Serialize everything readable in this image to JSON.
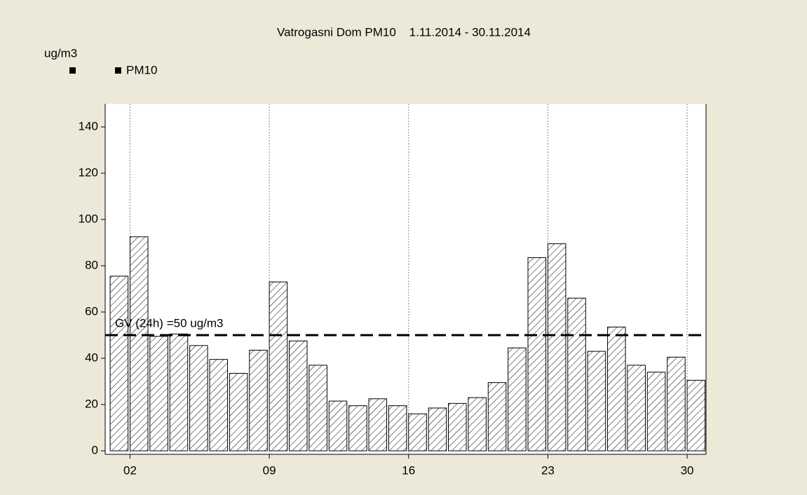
{
  "chart_data": {
    "type": "bar",
    "title": "Vatrogasni Dom PM10    1.11.2014 - 30.11.2014",
    "y_label": "ug/m3",
    "series": [
      {
        "name": "PM10",
        "color": "#000000",
        "values": [
          75.5,
          92.5,
          49.5,
          50.5,
          45.5,
          39.5,
          33.5,
          43.5,
          73,
          47.5,
          37,
          21.5,
          19.5,
          22.5,
          19.5,
          16,
          18.5,
          20.5,
          23,
          29.5,
          44.5,
          83.5,
          89.5,
          66,
          43,
          53.5,
          37,
          34,
          40.5,
          30.5
        ]
      }
    ],
    "x": [
      1,
      2,
      3,
      4,
      5,
      6,
      7,
      8,
      9,
      10,
      11,
      12,
      13,
      14,
      15,
      16,
      17,
      18,
      19,
      20,
      21,
      22,
      23,
      24,
      25,
      26,
      27,
      28,
      29,
      30
    ],
    "xlim": [
      0.75,
      30.95
    ],
    "xticks": [
      {
        "value": 2,
        "label": "02"
      },
      {
        "value": 9,
        "label": "09"
      },
      16,
      23,
      30
    ],
    "ylim": [
      0,
      150
    ],
    "yticks": [
      0,
      20,
      40,
      60,
      80,
      100,
      120,
      140
    ],
    "threshold": {
      "value": 50,
      "label": "GV (24h) =50 ug/m3"
    },
    "grid": true
  }
}
